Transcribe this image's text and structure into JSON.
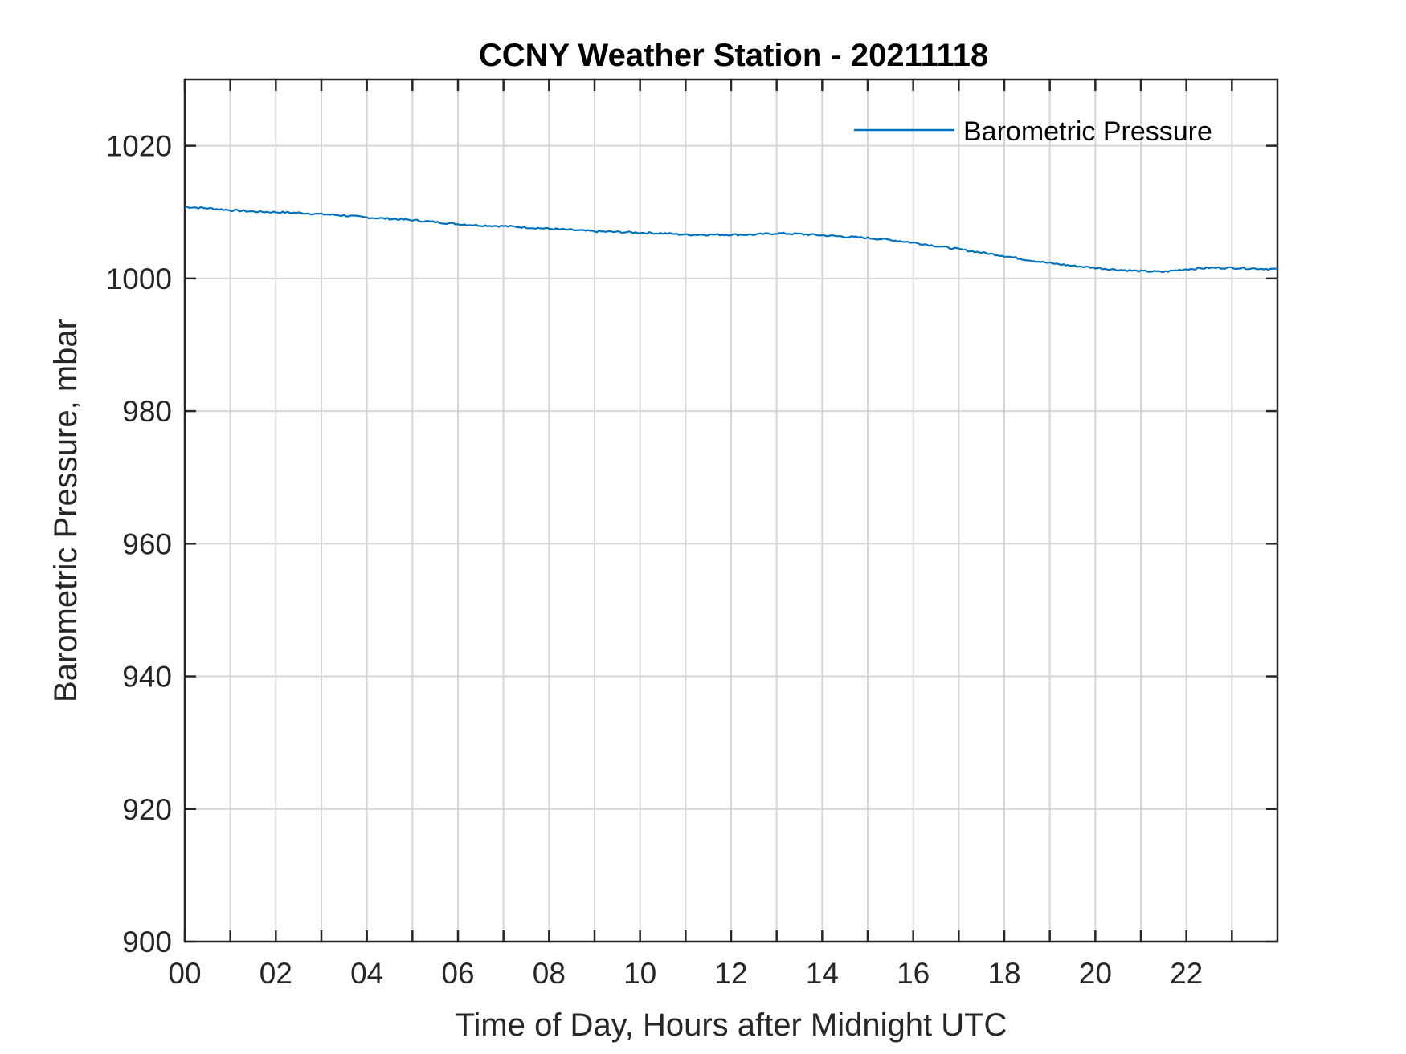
{
  "chart_data": {
    "type": "line",
    "title": "CCNY Weather Station - 20211118",
    "xlabel": "Time of Day, Hours after Midnight UTC",
    "ylabel": "Barometric Pressure, mbar",
    "xlim": [
      0,
      24
    ],
    "ylim": [
      900,
      1030
    ],
    "x_ticks": [
      0,
      2,
      4,
      6,
      8,
      10,
      12,
      14,
      16,
      18,
      20,
      22
    ],
    "x_tick_labels": [
      "00",
      "02",
      "04",
      "06",
      "08",
      "10",
      "12",
      "14",
      "16",
      "18",
      "20",
      "22"
    ],
    "x_minor_ticks": [
      1,
      3,
      5,
      7,
      9,
      11,
      13,
      15,
      17,
      19,
      21,
      23
    ],
    "y_ticks": [
      900,
      920,
      940,
      960,
      980,
      1000,
      1020
    ],
    "y_tick_labels": [
      "900",
      "920",
      "940",
      "960",
      "980",
      "1000",
      "1020"
    ],
    "grid": true,
    "legend_position": "top-right",
    "series": [
      {
        "name": "Barometric Pressure",
        "color": "#0072BD",
        "x": [
          0,
          0.5,
          1,
          1.5,
          2,
          2.5,
          3,
          3.5,
          4,
          4.5,
          5,
          5.5,
          6,
          6.5,
          7,
          7.5,
          8,
          8.5,
          9,
          9.5,
          10,
          10.5,
          11,
          11.5,
          12,
          12.5,
          13,
          13.5,
          14,
          14.5,
          15,
          15.5,
          16,
          16.5,
          17,
          17.5,
          18,
          18.5,
          19,
          19.5,
          20,
          20.5,
          21,
          21.5,
          22,
          22.5,
          23,
          23.5,
          24
        ],
        "values": [
          1010.8,
          1010.6,
          1010.3,
          1010.1,
          1010.0,
          1009.9,
          1009.7,
          1009.5,
          1009.2,
          1009.0,
          1008.8,
          1008.5,
          1008.2,
          1008.0,
          1007.9,
          1007.7,
          1007.5,
          1007.3,
          1007.1,
          1007.0,
          1006.9,
          1006.8,
          1006.6,
          1006.6,
          1006.6,
          1006.6,
          1006.8,
          1006.7,
          1006.5,
          1006.3,
          1006.1,
          1005.8,
          1005.4,
          1004.9,
          1004.4,
          1003.9,
          1003.4,
          1002.8,
          1002.3,
          1001.9,
          1001.6,
          1001.3,
          1001.1,
          1001.0,
          1001.4,
          1001.6,
          1001.6,
          1001.5,
          1001.4
        ]
      }
    ]
  }
}
